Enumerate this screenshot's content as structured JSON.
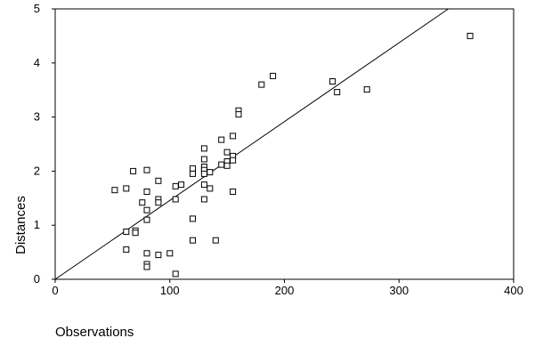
{
  "chart_data": {
    "type": "scatter",
    "xlabel": "Observations",
    "ylabel": "Distances",
    "xlim": [
      0,
      400
    ],
    "ylim": [
      0,
      5
    ],
    "x_ticks": [
      "0",
      "100",
      "200",
      "300",
      "400"
    ],
    "y_ticks": [
      "0",
      "1",
      "2",
      "3",
      "4",
      "5"
    ],
    "grid": false,
    "legend": "none",
    "marker": "hollow-square",
    "colors": {
      "marker": "#000000",
      "line": "#000000",
      "frame": "#000000",
      "background": "#ffffff"
    },
    "reference_line": {
      "from": [
        0,
        0
      ],
      "to": [
        343,
        5
      ]
    },
    "points": [
      [
        52,
        1.65
      ],
      [
        62,
        1.68
      ],
      [
        62,
        0.88
      ],
      [
        62,
        0.55
      ],
      [
        68,
        2.0
      ],
      [
        70,
        0.9
      ],
      [
        70,
        0.86
      ],
      [
        76,
        1.42
      ],
      [
        80,
        2.02
      ],
      [
        80,
        1.62
      ],
      [
        80,
        1.28
      ],
      [
        80,
        1.1
      ],
      [
        80,
        0.48
      ],
      [
        80,
        0.28
      ],
      [
        80,
        0.23
      ],
      [
        90,
        1.82
      ],
      [
        90,
        1.48
      ],
      [
        90,
        1.42
      ],
      [
        90,
        0.45
      ],
      [
        100,
        0.48
      ],
      [
        105,
        1.72
      ],
      [
        105,
        1.48
      ],
      [
        105,
        0.1
      ],
      [
        110,
        1.75
      ],
      [
        120,
        2.05
      ],
      [
        120,
        1.95
      ],
      [
        120,
        1.12
      ],
      [
        120,
        0.72
      ],
      [
        130,
        2.42
      ],
      [
        130,
        2.22
      ],
      [
        130,
        2.08
      ],
      [
        130,
        2.02
      ],
      [
        130,
        1.95
      ],
      [
        130,
        1.75
      ],
      [
        130,
        1.48
      ],
      [
        135,
        1.98
      ],
      [
        135,
        1.68
      ],
      [
        140,
        0.72
      ],
      [
        145,
        2.58
      ],
      [
        145,
        2.12
      ],
      [
        150,
        2.35
      ],
      [
        150,
        2.18
      ],
      [
        150,
        2.1
      ],
      [
        155,
        2.65
      ],
      [
        155,
        2.28
      ],
      [
        155,
        2.2
      ],
      [
        155,
        1.62
      ],
      [
        160,
        3.12
      ],
      [
        160,
        3.05
      ],
      [
        180,
        3.6
      ],
      [
        190,
        3.76
      ],
      [
        242,
        3.66
      ],
      [
        246,
        3.46
      ],
      [
        272,
        3.51
      ],
      [
        362,
        4.5
      ]
    ]
  }
}
